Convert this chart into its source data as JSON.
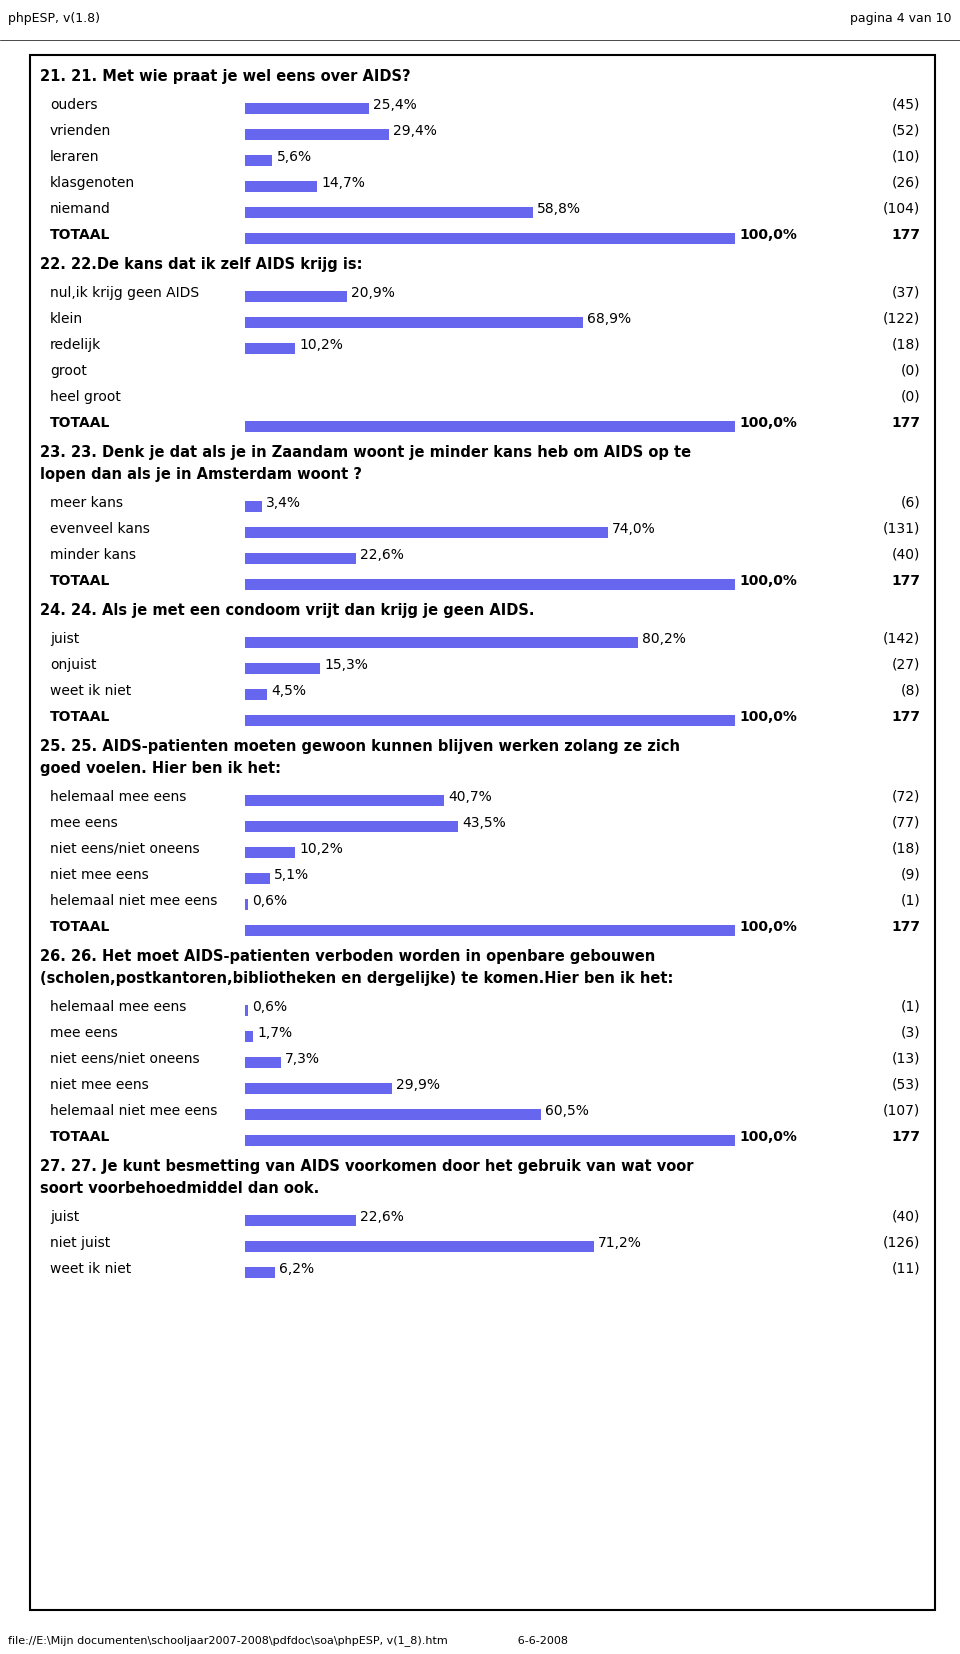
{
  "header_left": "phpESP, v(1.8)",
  "header_right": "pagina 4 van 10",
  "footer": "file://E:\\Mijn documenten\\schooljaar2007-2008\\pdfdoc\\soa\\phpESP, v(1_8).htm                    6-6-2008",
  "bar_color": "#6666ee",
  "sections": [
    {
      "text": "21. 21. Met wie praat je wel eens over AIDS?",
      "rows": [
        {
          "label": "ouders",
          "pct": 25.4,
          "pct_str": "25,4%",
          "count": "(45)"
        },
        {
          "label": "vrienden",
          "pct": 29.4,
          "pct_str": "29,4%",
          "count": "(52)"
        },
        {
          "label": "leraren",
          "pct": 5.6,
          "pct_str": "5,6%",
          "count": "(10)"
        },
        {
          "label": "klasgenoten",
          "pct": 14.7,
          "pct_str": "14,7%",
          "count": "(26)"
        },
        {
          "label": "niemand",
          "pct": 58.8,
          "pct_str": "58,8%",
          "count": "(104)"
        },
        {
          "label": "TOTAAL",
          "pct": 100.0,
          "pct_str": "100,0%",
          "count": "177",
          "total": true
        }
      ]
    },
    {
      "text": "22. 22.De kans dat ik zelf AIDS krijg is:",
      "rows": [
        {
          "label": "nul,ik krijg geen AIDS",
          "pct": 20.9,
          "pct_str": "20,9%",
          "count": "(37)"
        },
        {
          "label": "klein",
          "pct": 68.9,
          "pct_str": "68,9%",
          "count": "(122)"
        },
        {
          "label": "redelijk",
          "pct": 10.2,
          "pct_str": "10,2%",
          "count": "(18)"
        },
        {
          "label": "groot",
          "pct": 0.0,
          "pct_str": "",
          "count": "(0)"
        },
        {
          "label": "heel groot",
          "pct": 0.0,
          "pct_str": "",
          "count": "(0)"
        },
        {
          "label": "TOTAAL",
          "pct": 100.0,
          "pct_str": "100,0%",
          "count": "177",
          "total": true
        }
      ]
    },
    {
      "text": "23. 23. Denk je dat als je in Zaandam woont je minder kans heb om AIDS op te\nlopen dan als je in Amsterdam woont ?",
      "rows": [
        {
          "label": "meer kans",
          "pct": 3.4,
          "pct_str": "3,4%",
          "count": "(6)"
        },
        {
          "label": "evenveel kans",
          "pct": 74.0,
          "pct_str": "74,0%",
          "count": "(131)"
        },
        {
          "label": "minder kans",
          "pct": 22.6,
          "pct_str": "22,6%",
          "count": "(40)"
        },
        {
          "label": "TOTAAL",
          "pct": 100.0,
          "pct_str": "100,0%",
          "count": "177",
          "total": true
        }
      ]
    },
    {
      "text": "24. 24. Als je met een condoom vrijt dan krijg je geen AIDS.",
      "rows": [
        {
          "label": "juist",
          "pct": 80.2,
          "pct_str": "80,2%",
          "count": "(142)"
        },
        {
          "label": "onjuist",
          "pct": 15.3,
          "pct_str": "15,3%",
          "count": "(27)"
        },
        {
          "label": "weet ik niet",
          "pct": 4.5,
          "pct_str": "4,5%",
          "count": "(8)"
        },
        {
          "label": "TOTAAL",
          "pct": 100.0,
          "pct_str": "100,0%",
          "count": "177",
          "total": true
        }
      ]
    },
    {
      "text": "25. 25. AIDS-patienten moeten gewoon kunnen blijven werken zolang ze zich\ngoed voelen. Hier ben ik het:",
      "rows": [
        {
          "label": "helemaal mee eens",
          "pct": 40.7,
          "pct_str": "40,7%",
          "count": "(72)"
        },
        {
          "label": "mee eens",
          "pct": 43.5,
          "pct_str": "43,5%",
          "count": "(77)"
        },
        {
          "label": "niet eens/niet oneens",
          "pct": 10.2,
          "pct_str": "10,2%",
          "count": "(18)"
        },
        {
          "label": "niet mee eens",
          "pct": 5.1,
          "pct_str": "5,1%",
          "count": "(9)"
        },
        {
          "label": "helemaal niet mee eens",
          "pct": 0.6,
          "pct_str": "0,6%",
          "count": "(1)"
        },
        {
          "label": "TOTAAL",
          "pct": 100.0,
          "pct_str": "100,0%",
          "count": "177",
          "total": true
        }
      ]
    },
    {
      "text": "26. 26. Het moet AIDS-patienten verboden worden in openbare gebouwen\n(scholen,postkantoren,bibliotheken en dergelijke) te komen.Hier ben ik het:",
      "rows": [
        {
          "label": "helemaal mee eens",
          "pct": 0.6,
          "pct_str": "0,6%",
          "count": "(1)"
        },
        {
          "label": "mee eens",
          "pct": 1.7,
          "pct_str": "1,7%",
          "count": "(3)"
        },
        {
          "label": "niet eens/niet oneens",
          "pct": 7.3,
          "pct_str": "7,3%",
          "count": "(13)"
        },
        {
          "label": "niet mee eens",
          "pct": 29.9,
          "pct_str": "29,9%",
          "count": "(53)"
        },
        {
          "label": "helemaal niet mee eens",
          "pct": 60.5,
          "pct_str": "60,5%",
          "count": "(107)"
        },
        {
          "label": "TOTAAL",
          "pct": 100.0,
          "pct_str": "100,0%",
          "count": "177",
          "total": true
        }
      ]
    },
    {
      "text": "27. 27. Je kunt besmetting van AIDS voorkomen door het gebruik van wat voor\nsoort voorbehoedmiddel dan ook.",
      "rows": [
        {
          "label": "juist",
          "pct": 22.6,
          "pct_str": "22,6%",
          "count": "(40)"
        },
        {
          "label": "niet juist",
          "pct": 71.2,
          "pct_str": "71,2%",
          "count": "(126)"
        },
        {
          "label": "weet ik niet",
          "pct": 6.2,
          "pct_str": "6,2%",
          "count": "(11)"
        }
      ]
    }
  ]
}
